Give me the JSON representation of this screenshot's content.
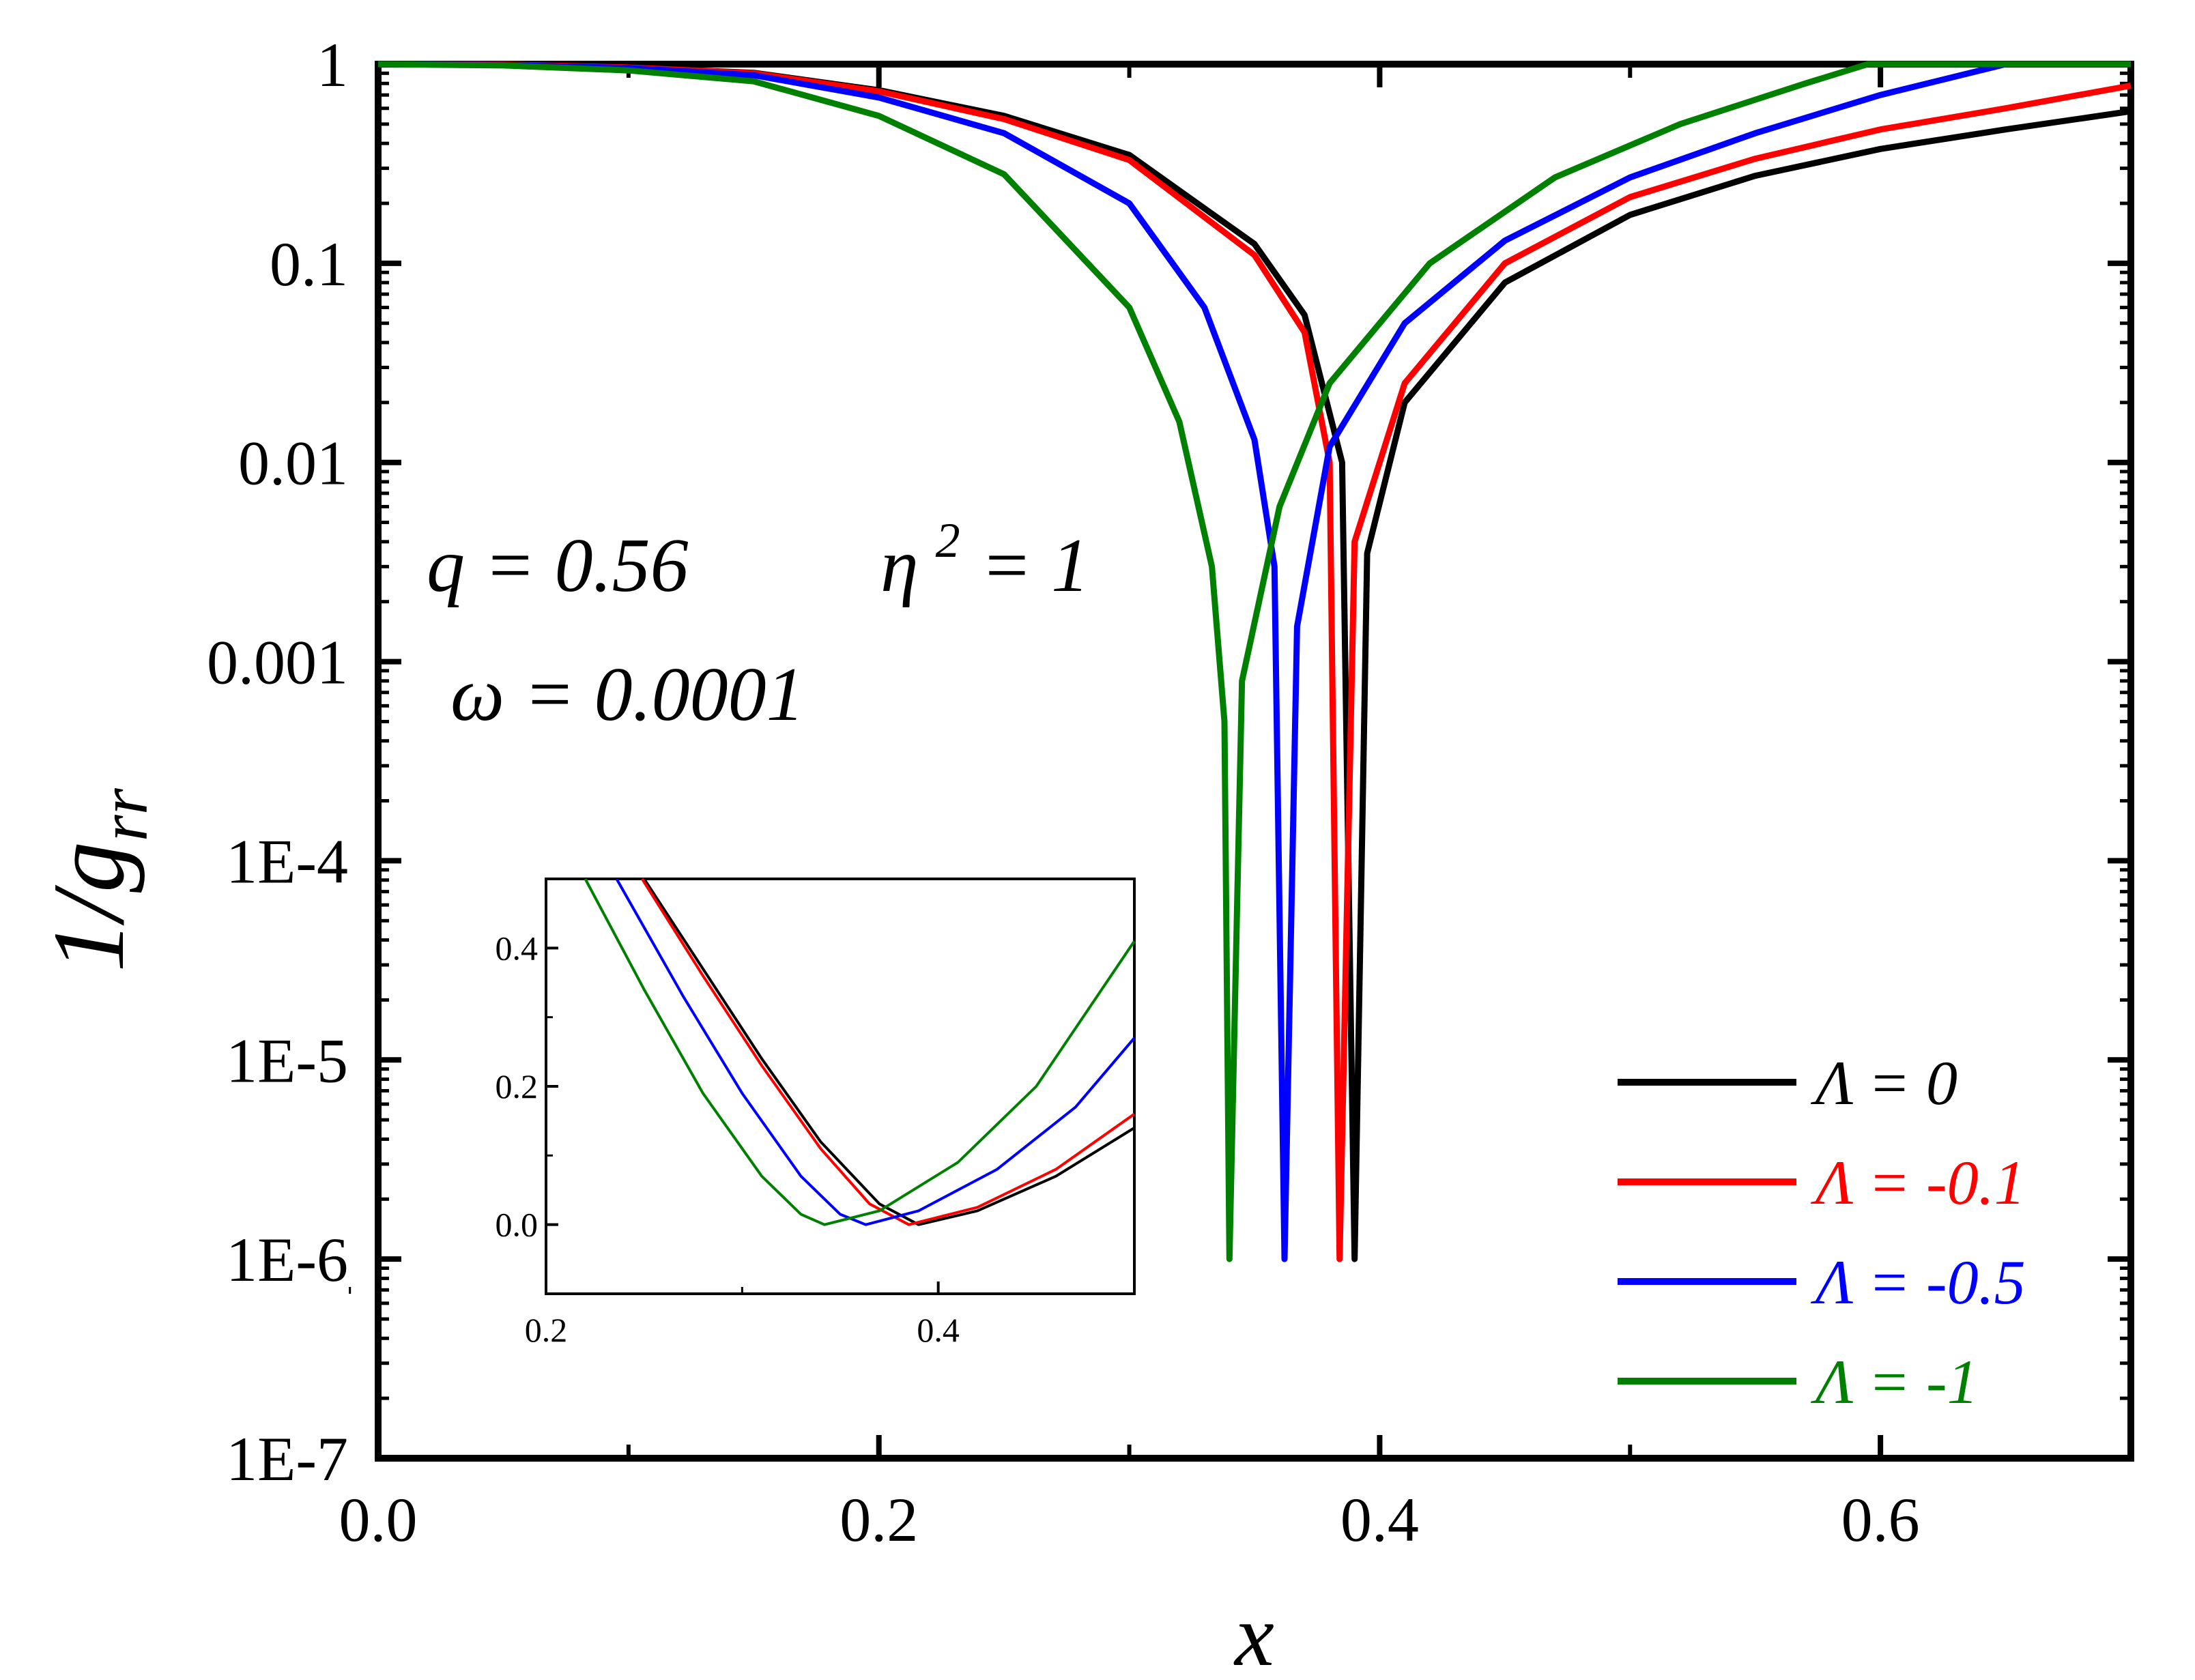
{
  "chart_data": {
    "type": "line",
    "ylabel": "1/g",
    "ylabel_subscript": "rr",
    "xlabel": "x",
    "xlim": [
      0,
      0.7
    ],
    "ylim": [
      1e-07,
      1
    ],
    "yscale": "log",
    "x_ticks": [
      "0.0",
      "0.2",
      "0.4",
      "0.6"
    ],
    "y_ticks": [
      "1",
      "0.1",
      "0.01",
      "0.001",
      "1E-4",
      "1E-5",
      "1E-6",
      "1E-7"
    ],
    "annotations": {
      "line1_q": "q = 0.56",
      "line1_eta": "η",
      "line1_eta_sup": "2",
      "line1_eta_val": "= 1",
      "line2": "ω = 0.0001"
    },
    "series": [
      {
        "name": "Λ = 0",
        "color": "#000000",
        "minimum_x": 0.39,
        "x": [
          0,
          0.05,
          0.1,
          0.15,
          0.2,
          0.25,
          0.3,
          0.35,
          0.37,
          0.385,
          0.39,
          0.395,
          0.41,
          0.45,
          0.5,
          0.55,
          0.6,
          0.65,
          0.7
        ],
        "y": [
          1.0,
          0.995,
          0.962,
          0.905,
          0.74,
          0.55,
          0.35,
          0.125,
          0.055,
          0.01,
          1e-06,
          0.0035,
          0.02,
          0.08,
          0.175,
          0.275,
          0.375,
          0.47,
          0.58
        ]
      },
      {
        "name": "Λ = -0.1",
        "color": "#ff0000",
        "minimum_x": 0.384,
        "x": [
          0,
          0.05,
          0.1,
          0.15,
          0.2,
          0.25,
          0.3,
          0.35,
          0.37,
          0.38,
          0.384,
          0.39,
          0.41,
          0.45,
          0.5,
          0.55,
          0.6,
          0.65,
          0.7
        ],
        "y": [
          1.0,
          0.995,
          0.962,
          0.9,
          0.73,
          0.53,
          0.33,
          0.11,
          0.045,
          0.01,
          1e-06,
          0.004,
          0.025,
          0.1,
          0.215,
          0.335,
          0.47,
          0.6,
          0.78
        ]
      },
      {
        "name": "Λ = -0.5",
        "color": "#0000ff",
        "minimum_x": 0.362,
        "x": [
          0,
          0.05,
          0.1,
          0.15,
          0.2,
          0.25,
          0.3,
          0.33,
          0.35,
          0.358,
          0.362,
          0.367,
          0.38,
          0.41,
          0.45,
          0.5,
          0.55,
          0.6,
          0.65,
          0.7
        ],
        "y": [
          1.0,
          0.99,
          0.955,
          0.88,
          0.68,
          0.45,
          0.2,
          0.06,
          0.013,
          0.003,
          1e-06,
          0.0015,
          0.012,
          0.05,
          0.13,
          0.27,
          0.45,
          0.7,
          1.0,
          1.0
        ]
      },
      {
        "name": "Λ = -1",
        "color": "#008000",
        "minimum_x": 0.34,
        "x": [
          0,
          0.05,
          0.1,
          0.15,
          0.2,
          0.25,
          0.3,
          0.32,
          0.333,
          0.338,
          0.34,
          0.345,
          0.36,
          0.38,
          0.42,
          0.47,
          0.52,
          0.57,
          0.595,
          0.7
        ],
        "y": [
          1.0,
          0.985,
          0.93,
          0.82,
          0.55,
          0.28,
          0.06,
          0.016,
          0.003,
          0.0005,
          1e-06,
          0.0008,
          0.006,
          0.025,
          0.1,
          0.27,
          0.5,
          0.8,
          1.0,
          1.0
        ]
      }
    ],
    "legend": {
      "position": "lower-right",
      "entries": [
        "Λ = 0",
        "Λ = -0.1",
        "Λ = -0.5",
        "Λ = -1"
      ]
    },
    "inset": {
      "type": "line",
      "xlim": [
        0.2,
        0.5
      ],
      "ylim": [
        -0.1,
        0.5
      ],
      "x_ticks": [
        "0.2",
        "0.4"
      ],
      "y_ticks": [
        "0.0",
        "0.2",
        "0.4"
      ],
      "series": [
        {
          "name": "Λ = 0",
          "color": "#000000",
          "x": [
            0.25,
            0.28,
            0.31,
            0.34,
            0.37,
            0.39,
            0.42,
            0.46,
            0.5
          ],
          "y": [
            0.5,
            0.37,
            0.24,
            0.12,
            0.03,
            0.0,
            0.02,
            0.07,
            0.14
          ]
        },
        {
          "name": "Λ = -0.1",
          "color": "#ff0000",
          "x": [
            0.249,
            0.28,
            0.31,
            0.34,
            0.365,
            0.385,
            0.42,
            0.46,
            0.5
          ],
          "y": [
            0.5,
            0.36,
            0.23,
            0.11,
            0.03,
            0.0,
            0.025,
            0.08,
            0.16
          ]
        },
        {
          "name": "Λ = -0.5",
          "color": "#0000ff",
          "x": [
            0.236,
            0.27,
            0.3,
            0.33,
            0.35,
            0.363,
            0.39,
            0.43,
            0.47,
            0.5
          ],
          "y": [
            0.5,
            0.33,
            0.19,
            0.07,
            0.015,
            0.0,
            0.02,
            0.08,
            0.17,
            0.27
          ]
        },
        {
          "name": "Λ = -1",
          "color": "#008000",
          "x": [
            0.22,
            0.25,
            0.28,
            0.31,
            0.33,
            0.342,
            0.37,
            0.41,
            0.45,
            0.5
          ],
          "y": [
            0.5,
            0.34,
            0.19,
            0.07,
            0.015,
            0.0,
            0.02,
            0.09,
            0.2,
            0.41
          ]
        }
      ]
    }
  }
}
